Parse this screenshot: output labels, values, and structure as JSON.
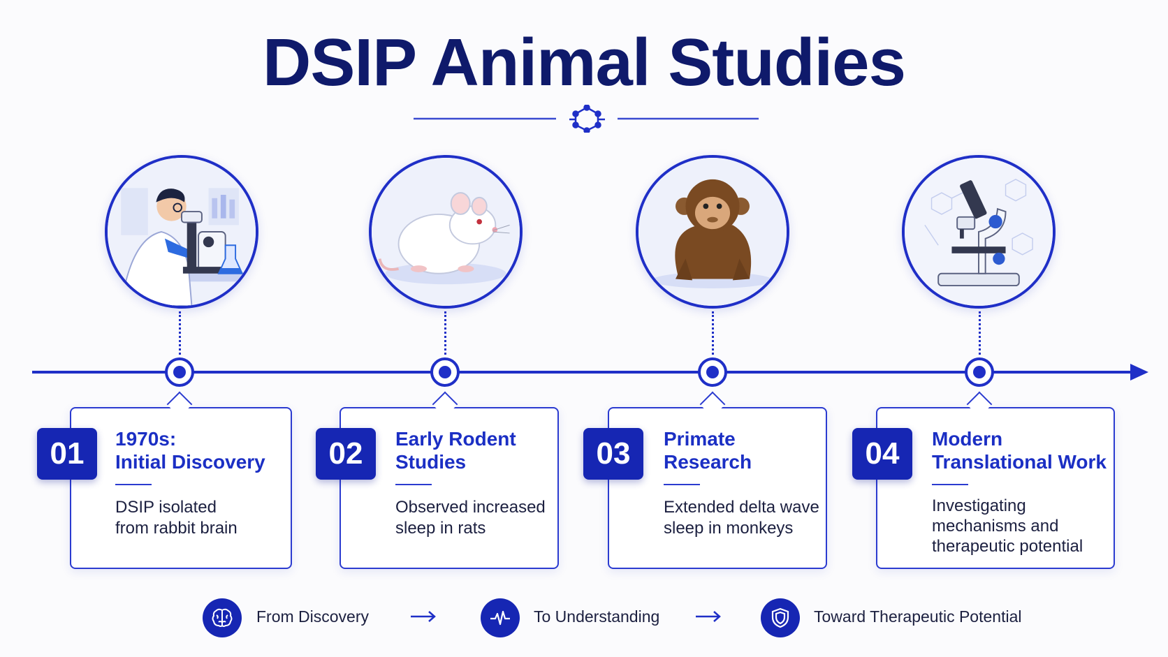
{
  "title": "DSIP Animal Studies",
  "colors": {
    "accent": "#1f2fc7",
    "dark": "#0f1a6b",
    "card_border": "#2b3bd0"
  },
  "stages": [
    {
      "number": "01",
      "title": "1970s:\nInitial Discovery",
      "description": "DSIP isolated\nfrom rabbit brain",
      "illustration": "scientist-microscope"
    },
    {
      "number": "02",
      "title": "Early Rodent\nStudies",
      "description": "Observed increased\nsleep in rats",
      "illustration": "rat"
    },
    {
      "number": "03",
      "title": "Primate\nResearch",
      "description": "Extended delta wave\nsleep in monkeys",
      "illustration": "monkey"
    },
    {
      "number": "04",
      "title": "Modern\nTranslational Work",
      "description": "Investigating\nmechanisms and\ntherapeutic potential",
      "illustration": "microscope"
    }
  ],
  "footer": [
    {
      "icon": "brain-icon",
      "label": "From Discovery"
    },
    {
      "icon": "pulse-icon",
      "label": "To Understanding"
    },
    {
      "icon": "shield-icon",
      "label": "Toward Therapeutic Potential"
    }
  ]
}
